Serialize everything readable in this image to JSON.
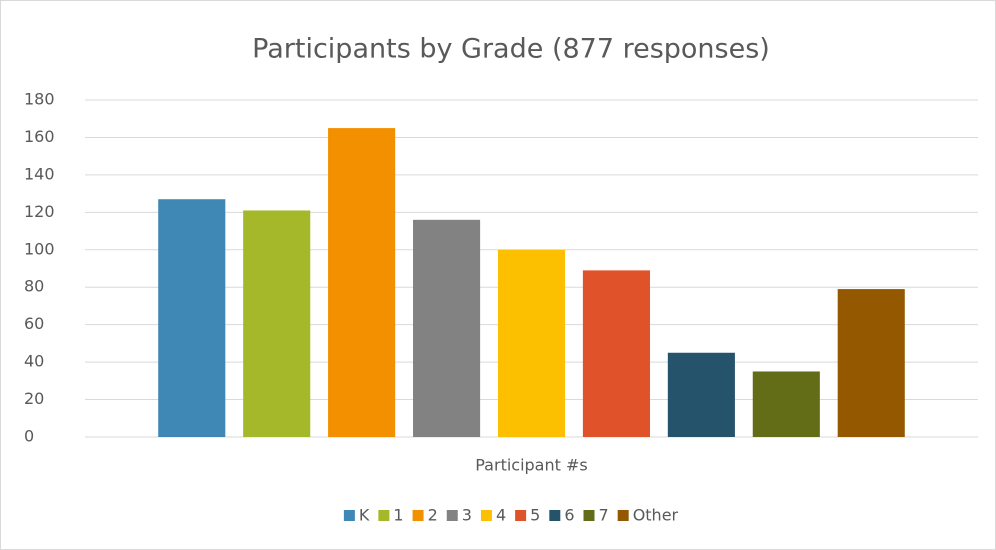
{
  "chart_data": {
    "type": "bar",
    "title": "Participants by Grade (877 responses)",
    "categories": [
      "Participant #s"
    ],
    "series": [
      {
        "name": "K",
        "color": "#3f87b5",
        "values": [
          127
        ]
      },
      {
        "name": "1",
        "color": "#a5b82a",
        "values": [
          121
        ]
      },
      {
        "name": "2",
        "color": "#f39000",
        "values": [
          165
        ]
      },
      {
        "name": "3",
        "color": "#828282",
        "values": [
          116
        ]
      },
      {
        "name": "4",
        "color": "#fdc000",
        "values": [
          100
        ]
      },
      {
        "name": "5",
        "color": "#e0522a",
        "values": [
          89
        ]
      },
      {
        "name": "6",
        "color": "#26536c",
        "values": [
          45
        ]
      },
      {
        "name": "7",
        "color": "#636d18",
        "values": [
          35
        ]
      },
      {
        "name": "Other",
        "color": "#945800",
        "values": [
          79
        ]
      }
    ],
    "ylim": [
      0,
      180
    ],
    "yticks": [
      0,
      20,
      40,
      60,
      80,
      100,
      120,
      140,
      160,
      180
    ],
    "grid": true,
    "legend": "bottom"
  }
}
